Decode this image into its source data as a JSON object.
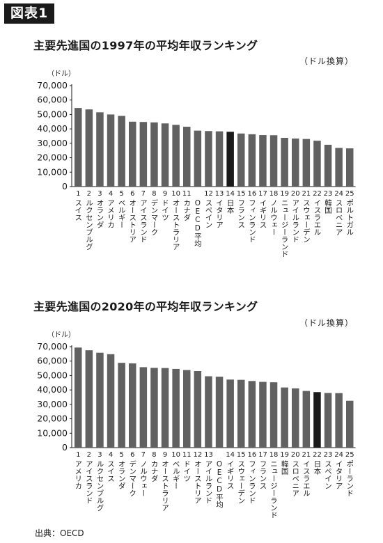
{
  "figure_label": "図表1",
  "source": "出典：OECD",
  "chart_data": [
    {
      "type": "bar",
      "title": "主要先進国の1997年の平均年収ランキング",
      "unit_note": "（ドル換算）",
      "ylabel": "（ドル）",
      "ylim": [
        0,
        70000
      ],
      "yticks": [
        "0",
        "10,000",
        "20,000",
        "30,000",
        "40,000",
        "50,000",
        "60,000",
        "70,000"
      ],
      "highlight": "日本",
      "colors": {
        "bar": "#616161",
        "highlight": "#1a1a1a"
      },
      "ranks": [
        "1",
        "2",
        "3",
        "4",
        "5",
        "6",
        "7",
        "8",
        "9",
        "10",
        "11",
        "12",
        "13",
        "14",
        "15",
        "16",
        "17",
        "18",
        "19",
        "20",
        "21",
        "22",
        "23",
        "24",
        "25"
      ],
      "categories": [
        "スイス",
        "ルクセンブルグ",
        "オランダ",
        "アメリカ",
        "ベルギー",
        "オーストリア",
        "アイスランド",
        "デンマーク",
        "ドイツ",
        "オーストラリア",
        "カナダ",
        "OECD平均",
        "スペイン",
        "イタリア",
        "日本",
        "フランス",
        "フィンランド",
        "イギリス",
        "ノルウェー",
        "ニュージーランド",
        "アイルランド",
        "スウェーデン",
        "イスラエル",
        "韓国",
        "スロベニア",
        "ポルトガル"
      ],
      "values": [
        54500,
        53500,
        51500,
        50000,
        49000,
        45000,
        44800,
        44500,
        43800,
        42800,
        41500,
        38800,
        38500,
        38300,
        38000,
        36800,
        36300,
        35700,
        35600,
        33800,
        33300,
        33000,
        31800,
        29000,
        26800,
        26500
      ]
    },
    {
      "type": "bar",
      "title": "主要先進国の2020年の平均年収ランキング",
      "unit_note": "（ドル換算）",
      "ylabel": "（ドル）",
      "ylim": [
        0,
        70000
      ],
      "yticks": [
        "0",
        "10,000",
        "20,000",
        "30,000",
        "40,000",
        "50,000",
        "60,000",
        "70,000"
      ],
      "highlight": "日本",
      "colors": {
        "bar": "#616161",
        "highlight": "#1a1a1a"
      },
      "ranks": [
        "1",
        "2",
        "3",
        "4",
        "5",
        "6",
        "7",
        "8",
        "9",
        "10",
        "11",
        "12",
        "13",
        "14",
        "15",
        "16",
        "17",
        "18",
        "19",
        "20",
        "21",
        "22",
        "23",
        "24",
        "25"
      ],
      "categories": [
        "アメリカ",
        "アイスランド",
        "ルクセンブルグ",
        "スイス",
        "オランダ",
        "デンマーク",
        "ノルウェー",
        "カナダ",
        "オーストラリア",
        "ベルギー",
        "ドイツ",
        "オーストリア",
        "アイルランド",
        "OECD平均",
        "イギリス",
        "スウェーデン",
        "フィンランド",
        "フランス",
        "ニュージーランド",
        "韓国",
        "スロベニア",
        "イスラエル",
        "日本",
        "スペイン",
        "イタリア",
        "ポーランド"
      ],
      "values": [
        69400,
        67500,
        65800,
        64800,
        58800,
        58400,
        55800,
        55300,
        55200,
        54600,
        53800,
        53100,
        49500,
        49200,
        47200,
        47000,
        46200,
        45600,
        45300,
        41700,
        41100,
        39300,
        38500,
        37900,
        37800,
        32500
      ]
    }
  ]
}
